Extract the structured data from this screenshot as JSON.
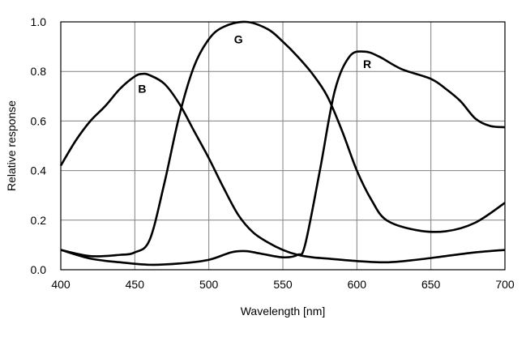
{
  "chart_data": {
    "type": "line",
    "title": "",
    "xlabel": "Wavelength [nm]",
    "ylabel": "Relative response",
    "xlim": [
      400,
      700
    ],
    "ylim": [
      0,
      1.0
    ],
    "xticks": [
      "400",
      "450",
      "500",
      "550",
      "600",
      "650",
      "700"
    ],
    "yticks": [
      "0.0",
      "0.2",
      "0.4",
      "0.6",
      "0.8",
      "1.0"
    ],
    "grid": true,
    "line_color": "#000000",
    "grid_color": "#808080",
    "series": [
      {
        "name": "B",
        "label_pos": [
          455,
          0.73
        ],
        "x": [
          400,
          410,
          420,
          430,
          440,
          450,
          455,
          460,
          470,
          480,
          490,
          500,
          510,
          520,
          530,
          540,
          550,
          560,
          570,
          580,
          600,
          620,
          640,
          660,
          680,
          700
        ],
        "y": [
          0.42,
          0.52,
          0.6,
          0.66,
          0.73,
          0.78,
          0.79,
          0.785,
          0.75,
          0.67,
          0.56,
          0.45,
          0.33,
          0.22,
          0.15,
          0.11,
          0.08,
          0.06,
          0.05,
          0.045,
          0.035,
          0.03,
          0.04,
          0.055,
          0.07,
          0.08
        ]
      },
      {
        "name": "G",
        "label_pos": [
          520,
          0.93
        ],
        "x": [
          400,
          420,
          440,
          450,
          460,
          470,
          480,
          490,
          500,
          510,
          525,
          540,
          550,
          560,
          570,
          580,
          590,
          600,
          610,
          620,
          640,
          660,
          680,
          700
        ],
        "y": [
          0.08,
          0.055,
          0.06,
          0.07,
          0.12,
          0.35,
          0.62,
          0.82,
          0.93,
          0.98,
          1.0,
          0.97,
          0.92,
          0.86,
          0.79,
          0.7,
          0.56,
          0.4,
          0.28,
          0.2,
          0.16,
          0.155,
          0.19,
          0.27
        ]
      },
      {
        "name": "R",
        "label_pos": [
          607,
          0.83
        ],
        "x": [
          400,
          420,
          440,
          460,
          480,
          500,
          515,
          525,
          535,
          550,
          560,
          565,
          575,
          585,
          595,
          605,
          615,
          630,
          650,
          660,
          670,
          680,
          690,
          700
        ],
        "y": [
          0.08,
          0.045,
          0.03,
          0.02,
          0.025,
          0.04,
          0.07,
          0.075,
          0.065,
          0.05,
          0.06,
          0.1,
          0.4,
          0.72,
          0.86,
          0.88,
          0.86,
          0.81,
          0.77,
          0.73,
          0.68,
          0.61,
          0.58,
          0.575
        ]
      }
    ]
  }
}
